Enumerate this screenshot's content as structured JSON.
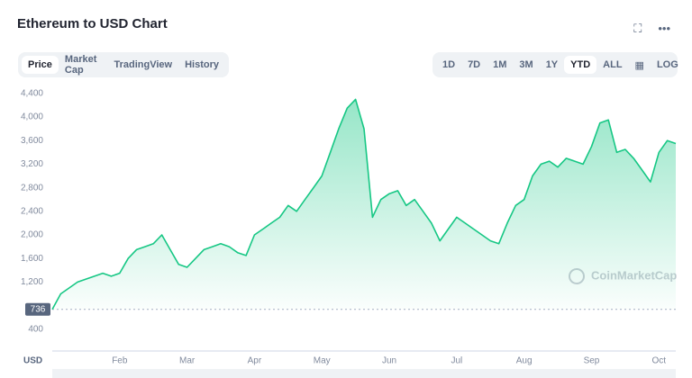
{
  "header": {
    "title": "Ethereum to USD Chart"
  },
  "tabs": [
    "Price",
    "Market Cap",
    "TradingView",
    "History"
  ],
  "ranges": [
    "1D",
    "7D",
    "1M",
    "3M",
    "1Y",
    "YTD",
    "ALL",
    "LOG"
  ],
  "chart_data": {
    "type": "area",
    "categories": [
      null,
      null,
      null,
      null,
      null,
      null,
      null,
      null,
      "Feb",
      null,
      null,
      null,
      null,
      null,
      null,
      null,
      "Mar",
      null,
      null,
      null,
      null,
      null,
      null,
      null,
      "Apr",
      null,
      null,
      null,
      null,
      null,
      null,
      null,
      "May",
      null,
      null,
      null,
      null,
      null,
      null,
      null,
      "Jun",
      null,
      null,
      null,
      null,
      null,
      null,
      null,
      "Jul",
      null,
      null,
      null,
      null,
      null,
      null,
      null,
      "Aug",
      null,
      null,
      null,
      null,
      null,
      null,
      null,
      "Sep",
      null,
      null,
      null,
      null,
      null,
      null,
      null,
      "Oct",
      null,
      null
    ],
    "values": [
      736,
      1000,
      1100,
      1200,
      1250,
      1300,
      1350,
      1300,
      1350,
      1600,
      1750,
      1800,
      1850,
      2000,
      1750,
      1500,
      1450,
      1600,
      1750,
      1800,
      1850,
      1800,
      1700,
      1650,
      2000,
      2100,
      2200,
      2300,
      2500,
      2400,
      2600,
      2800,
      3000,
      3400,
      3800,
      4150,
      4300,
      3800,
      2300,
      2600,
      2700,
      2750,
      2500,
      2600,
      2400,
      2200,
      1900,
      2100,
      2300,
      2200,
      2100,
      2000,
      1900,
      1850,
      2200,
      2500,
      2600,
      3000,
      3200,
      3250,
      3150,
      3300,
      3250,
      3200,
      3500,
      3900,
      3950,
      3400,
      3450,
      3300,
      3100,
      2900,
      3400,
      3600,
      3550
    ],
    "color": "#16c784",
    "ylim": [
      0,
      4550
    ],
    "yticks": [
      400,
      {
        "value": 1200,
        "label": "1,200"
      },
      {
        "value": 1600,
        "label": "1,600"
      },
      {
        "value": 2000,
        "label": "2,000"
      },
      {
        "value": 2400,
        "label": "2,400"
      },
      {
        "value": 2800,
        "label": "2,800"
      },
      {
        "value": 3200,
        "label": "3,200"
      },
      {
        "value": 3600,
        "label": "3,600"
      },
      {
        "value": 4000,
        "label": "4,000"
      },
      {
        "value": 4400,
        "label": "4,400"
      }
    ],
    "reference_value": 736,
    "y_label": "USD",
    "watermark": "CoinMarketCap",
    "grid": false
  }
}
